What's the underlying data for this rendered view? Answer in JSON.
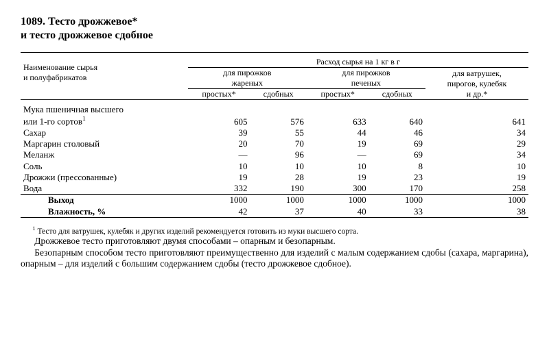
{
  "title_line1": "1089. Тесто дрожжевое*",
  "title_line2": "и тесто дрожжевое сдобное",
  "header": {
    "col_left_l1": "Наименование сырья",
    "col_left_l2": "и полуфабрикатов",
    "span_top": "Расход сырья на 1 кг в г",
    "grp1_l1": "для пирожков",
    "grp1_l2": "жареных",
    "grp2_l1": "для пирожков",
    "grp2_l2": "печеных",
    "grp3_l1": "для ватрушек,",
    "grp3_l2": "пирогов, кулебяк",
    "grp3_l3": "и др.*",
    "sub1": "простых*",
    "sub2": "сдобных",
    "sub3": "простых*",
    "sub4": "сдобных"
  },
  "rows": {
    "r1_l1": "Мука пшеничная высшего",
    "r1_l2": "или 1-го сортов",
    "r1_sup": "1",
    "r1": [
      "605",
      "576",
      "633",
      "640",
      "641"
    ],
    "r2_lbl": "Сахар",
    "r2": [
      "39",
      "55",
      "44",
      "46",
      "34"
    ],
    "r3_lbl": "Маргарин столовый",
    "r3": [
      "20",
      "70",
      "19",
      "69",
      "29"
    ],
    "r4_lbl": "Меланж",
    "r4": [
      "—",
      "96",
      "—",
      "69",
      "34"
    ],
    "r5_lbl": "Соль",
    "r5": [
      "10",
      "10",
      "10",
      "8",
      "10"
    ],
    "r6_lbl": "Дрожжи (прессованные)",
    "r6": [
      "19",
      "28",
      "19",
      "23",
      "19"
    ],
    "r7_lbl": "Вода",
    "r7": [
      "332",
      "190",
      "300",
      "170",
      "258"
    ],
    "out_lbl": "Выход",
    "out": [
      "1000",
      "1000",
      "1000",
      "1000",
      "1000"
    ],
    "hum_lbl": "Влажность, %",
    "hum": [
      "42",
      "37",
      "40",
      "33",
      "38"
    ]
  },
  "footnote_sup": "1",
  "footnote": " Тесто для ватрушек, кулебяк и других изделий рекомендуется готовить из муки высшего сорта.",
  "para1": "Дрожжевое тесто приготовляют двумя способами – опарным и безопарным.",
  "para2": "Безопарным способом тесто приготовляют преимущественно для изделий с малым содержанием сдобы (сахара, маргарина), опарным – для изделий с большим содержанием сдобы (тесто дрожжевое сдобное)."
}
